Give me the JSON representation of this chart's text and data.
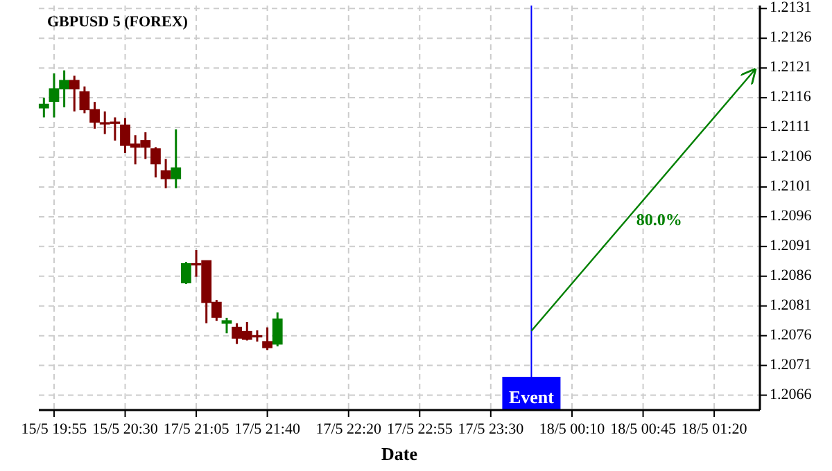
{
  "chart_data": {
    "type": "candlestick",
    "title": "GBPUSD 5 (FOREX)",
    "xlabel": "Date",
    "categories": [
      null,
      "15/5 19:55",
      null,
      null,
      null,
      null,
      null,
      null,
      "15/5 20:30",
      null,
      null,
      null,
      null,
      null,
      null,
      "17/5 21:05",
      null,
      null,
      null,
      null,
      null,
      null,
      "17/5 21:40",
      null,
      null,
      null,
      null,
      null,
      null,
      null,
      "17/5 22:20",
      null,
      null,
      null,
      null,
      null,
      null,
      "17/5 22:55",
      null,
      null,
      null,
      null,
      null,
      null,
      "17/5 23:30",
      null,
      null,
      null,
      null,
      null,
      null,
      null,
      "18/5 00:10",
      null,
      null,
      null,
      null,
      null,
      null,
      "18/5 00:45",
      null,
      null,
      null,
      null,
      null,
      null,
      "18/5 01:20",
      null,
      null,
      null,
      null
    ],
    "ohlc": [
      [
        1.21143,
        1.2116,
        1.21127,
        1.21149
      ],
      [
        1.21154,
        1.21201,
        1.21127,
        1.21175
      ],
      [
        1.21175,
        1.21206,
        1.21144,
        1.21189
      ],
      [
        1.21189,
        1.21197,
        1.21137,
        1.21175
      ],
      [
        1.2117,
        1.21179,
        1.21134,
        1.2114
      ],
      [
        1.2114,
        1.21153,
        1.21108,
        1.21119
      ],
      [
        1.21118,
        1.21137,
        1.21099,
        1.21116
      ],
      [
        1.21119,
        1.21127,
        1.21088,
        1.21117
      ],
      [
        1.21114,
        1.21126,
        1.21067,
        1.2108
      ],
      [
        1.21082,
        1.21097,
        1.21048,
        1.21077
      ],
      [
        1.21088,
        1.21102,
        1.21057,
        1.21077
      ],
      [
        1.21074,
        1.21077,
        1.21026,
        1.21049
      ],
      [
        1.21037,
        1.21057,
        1.21008,
        1.21024
      ],
      [
        1.21024,
        1.21107,
        1.21008,
        1.21042
      ],
      [
        1.20849,
        1.20884,
        1.20847,
        1.20881
      ],
      [
        1.20881,
        1.20904,
        1.20859,
        1.20879
      ],
      [
        1.20886,
        1.20886,
        1.20781,
        1.20816
      ],
      [
        1.20816,
        1.2082,
        1.20785,
        1.20791
      ],
      [
        1.20781,
        1.2079,
        1.20764,
        1.20785
      ],
      [
        1.20774,
        1.20781,
        1.20746,
        1.20756
      ],
      [
        1.20767,
        1.20783,
        1.20752,
        1.20754
      ],
      [
        1.2076,
        1.20769,
        1.2075,
        1.20758
      ],
      [
        1.2075,
        1.20774,
        1.20736,
        1.2074
      ],
      [
        1.20746,
        1.20799,
        1.20742,
        1.20788
      ],
      null,
      null,
      null,
      null,
      null,
      null,
      null,
      null,
      null,
      null,
      null,
      null,
      null,
      null,
      null,
      null,
      null,
      null,
      null,
      null,
      null,
      null,
      null,
      null,
      null,
      null,
      null,
      null,
      null,
      null,
      null,
      null,
      null,
      null,
      null,
      null,
      null,
      null,
      null,
      null,
      null,
      null,
      null,
      null,
      null,
      null,
      null
    ],
    "colors": [
      "#008000",
      "#008000",
      "#008000",
      "#800000",
      "#800000",
      "#800000",
      "#800000",
      "#800000",
      "#800000",
      "#800000",
      "#800000",
      "#800000",
      "#800000",
      "#008000",
      "#008000",
      "#800000",
      "#800000",
      "#800000",
      "#008000",
      "#800000",
      "#800000",
      "#800000",
      "#800000",
      "#008000",
      null,
      null,
      null,
      null,
      null,
      null,
      null,
      null,
      null,
      null,
      null,
      null,
      null,
      null,
      null,
      null,
      null,
      null,
      null,
      null,
      null,
      null,
      null,
      null,
      null,
      null,
      null,
      null,
      null,
      null,
      null,
      null,
      null,
      null,
      null,
      null,
      null,
      null,
      null,
      null,
      null,
      null,
      null,
      null,
      null,
      null,
      null
    ],
    "series": [
      {
        "type": "line",
        "values": [
          null,
          null,
          null,
          null,
          null,
          null,
          null,
          null,
          null,
          null,
          null,
          null,
          null,
          null,
          null,
          null,
          null,
          null,
          null,
          null,
          null,
          null,
          null,
          null,
          null,
          null,
          null,
          null,
          null,
          null,
          null,
          null,
          null,
          null,
          null,
          null,
          null,
          null,
          null,
          null,
          null,
          null,
          null,
          null,
          null,
          null,
          null,
          null,
          1.20768,
          null,
          null,
          null,
          null,
          null,
          null,
          null,
          null,
          null,
          null,
          null,
          null,
          null,
          null,
          null,
          null,
          null,
          null,
          null,
          null,
          null,
          1.21207
        ],
        "color": "#008000"
      }
    ],
    "annotations": [
      "80.0%",
      "Event"
    ],
    "ylim": [
      1.20635,
      1.21315
    ],
    "yticks": [
      1.2066,
      1.2071,
      1.2076,
      1.2081,
      1.2086,
      1.2091,
      1.2096,
      1.2101,
      1.2106,
      1.2111,
      1.2116,
      1.2121,
      1.2126,
      1.2131
    ],
    "grid": true
  }
}
